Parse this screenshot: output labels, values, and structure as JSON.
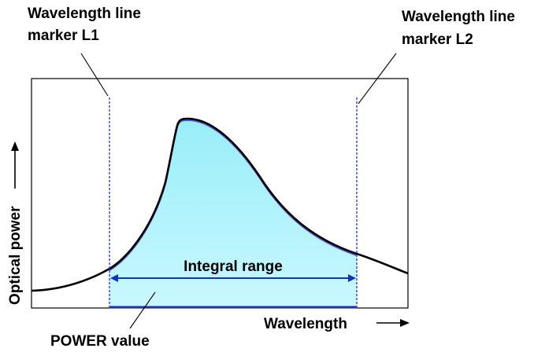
{
  "labels": {
    "marker_l1": [
      "Wavelength line",
      "marker L1"
    ],
    "marker_l2": [
      "Wavelength line",
      "marker L2"
    ],
    "y_axis": "Optical power",
    "x_axis": "Wavelength",
    "integral_range": "Integral range",
    "power_value": "POWER value"
  },
  "colors": {
    "fill_top": "#99eef8",
    "fill_bottom": "#c9f8ff",
    "marker_line": "#3344cc",
    "range_arrow": "#1133cc",
    "curve": "#000000",
    "frame": "#000000"
  }
}
